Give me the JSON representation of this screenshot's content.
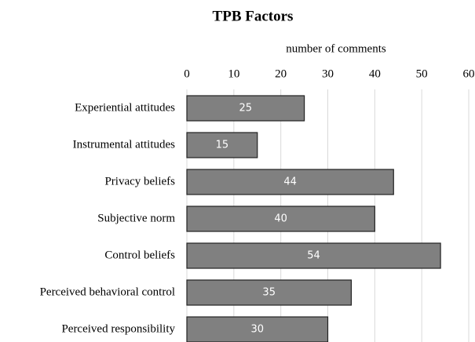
{
  "chart_data": {
    "type": "bar",
    "orientation": "horizontal",
    "title": "TPB Factors",
    "x_label": "number of comments",
    "categories": [
      "Experiential attitudes",
      "Instrumental attitudes",
      "Privacy beliefs",
      "Subjective norm",
      "Control beliefs",
      "Perceived behavioral control",
      "Perceived responsibility"
    ],
    "values": [
      25,
      15,
      44,
      40,
      54,
      35,
      30
    ],
    "color": "#808080",
    "xlim": [
      0,
      60
    ],
    "xticks": [
      0,
      10,
      20,
      30,
      40,
      50,
      60
    ],
    "grid": true,
    "data_labels": true
  }
}
